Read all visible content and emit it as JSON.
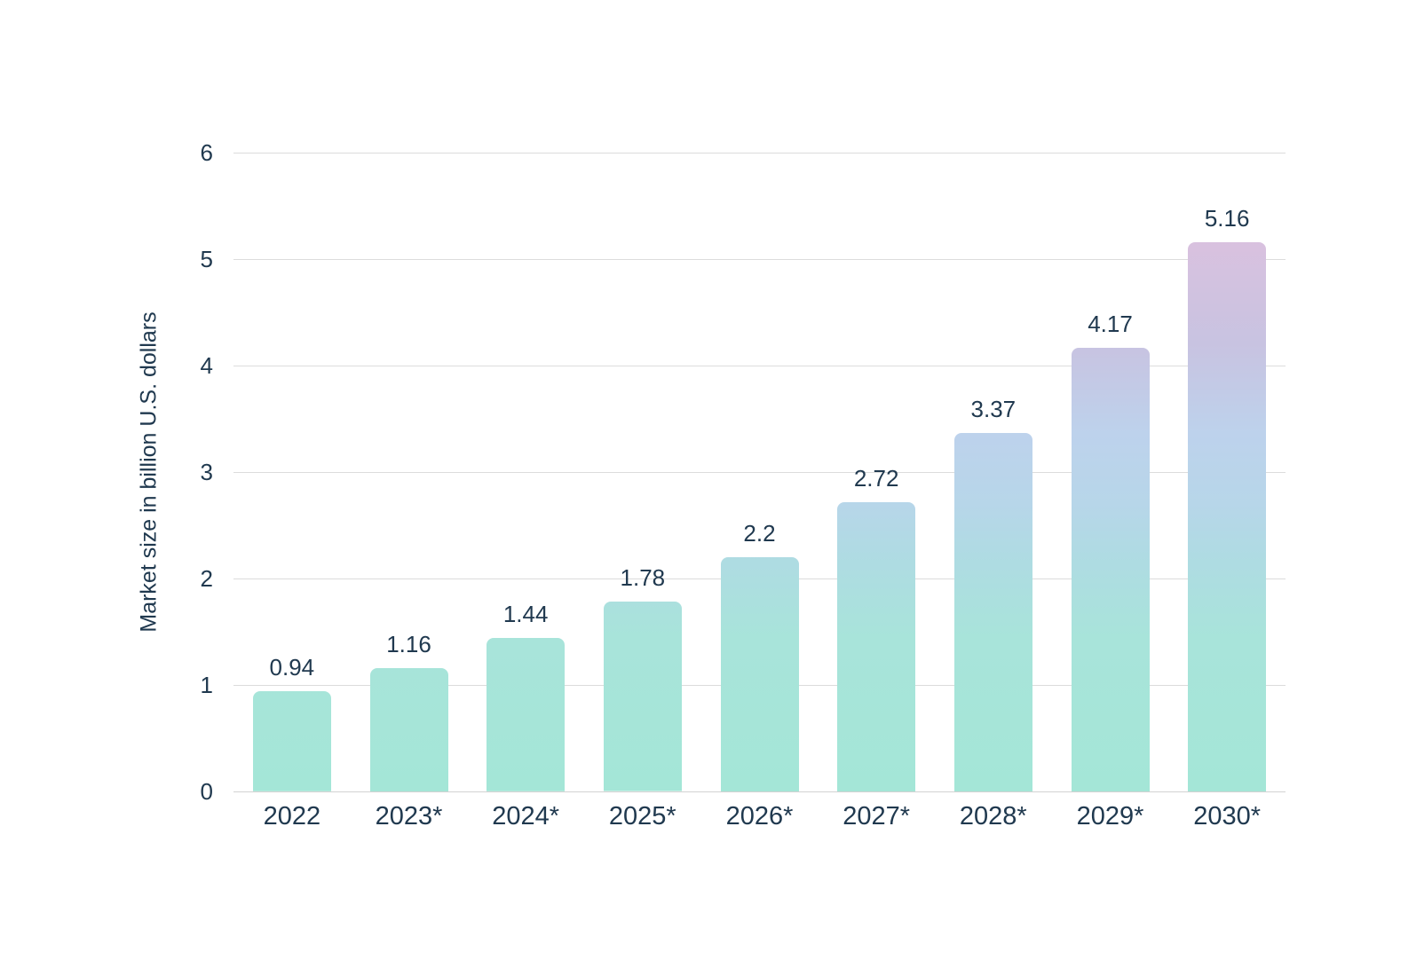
{
  "chart_data": {
    "type": "bar",
    "title": "",
    "xlabel": "",
    "ylabel": "Market size in billion U.S. dollars",
    "categories": [
      "2022",
      "2023*",
      "2024*",
      "2025*",
      "2026*",
      "2027*",
      "2028*",
      "2029*",
      "2030*"
    ],
    "values": [
      0.94,
      1.16,
      1.44,
      1.78,
      2.2,
      2.72,
      3.37,
      4.17,
      5.16
    ],
    "value_labels": [
      "0.94",
      "1.16",
      "1.44",
      "1.78",
      "2.2",
      "2.72",
      "3.37",
      "4.17",
      "5.16"
    ],
    "yticks": [
      "0",
      "1",
      "2",
      "3",
      "4",
      "5",
      "6"
    ],
    "ylim": [
      0,
      6
    ],
    "grid": true,
    "legend": false,
    "colors": {
      "text": "#20394f",
      "gridline": "#dcdcdc",
      "axis_line": "#d2d2d2",
      "bar_gradient": [
        {
          "color": "#a4e6d7",
          "pos": "0%"
        },
        {
          "color": "#a8e4da",
          "pos": "24%"
        },
        {
          "color": "#afdbe3",
          "pos": "37%"
        },
        {
          "color": "#b7d6e9",
          "pos": "45%"
        },
        {
          "color": "#bdd2ec",
          "pos": "56%"
        },
        {
          "color": "#c8c3e1",
          "pos": "70%"
        },
        {
          "color": "#d9c1df",
          "pos": "86%"
        },
        {
          "color": "#e6bcd9",
          "pos": "100%"
        }
      ]
    }
  }
}
